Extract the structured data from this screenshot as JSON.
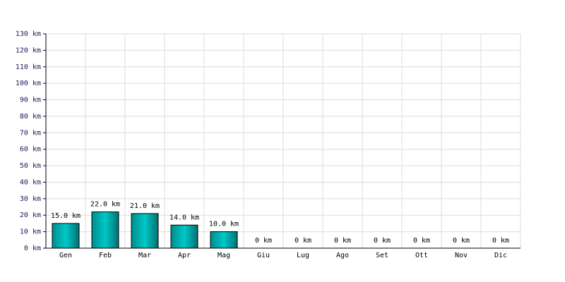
{
  "chart_data": {
    "type": "bar",
    "categories": [
      "Gen",
      "Feb",
      "Mar",
      "Apr",
      "Mag",
      "Giu",
      "Lug",
      "Ago",
      "Set",
      "Ott",
      "Nov",
      "Dic"
    ],
    "values": [
      15,
      22,
      21,
      14,
      10,
      0,
      0,
      0,
      0,
      0,
      0,
      0
    ],
    "value_labels": [
      "15.0 km",
      "22.0 km",
      "21.0 km",
      "14.0 km",
      "10.0 km",
      "0 km",
      "0 km",
      "0 km",
      "0 km",
      "0 km",
      "0 km",
      "0 km"
    ],
    "color": "#00c8c8",
    "ylim": [
      0,
      130
    ],
    "yticks": [
      {
        "value": 0,
        "label": "0 km"
      },
      {
        "value": 10,
        "label": "10 km"
      },
      {
        "value": 20,
        "label": "20 km"
      },
      {
        "value": 30,
        "label": "30 km"
      },
      {
        "value": 40,
        "label": "40 km"
      },
      {
        "value": 50,
        "label": "50 km"
      },
      {
        "value": 60,
        "label": "60 km"
      },
      {
        "value": 70,
        "label": "70 km"
      },
      {
        "value": 80,
        "label": "80 km"
      },
      {
        "value": 90,
        "label": "90 km"
      },
      {
        "value": 100,
        "label": "100 km"
      },
      {
        "value": 110,
        "label": "110 km"
      },
      {
        "value": 120,
        "label": "120 km"
      },
      {
        "value": 130,
        "label": "130 km"
      }
    ],
    "grid": true
  }
}
